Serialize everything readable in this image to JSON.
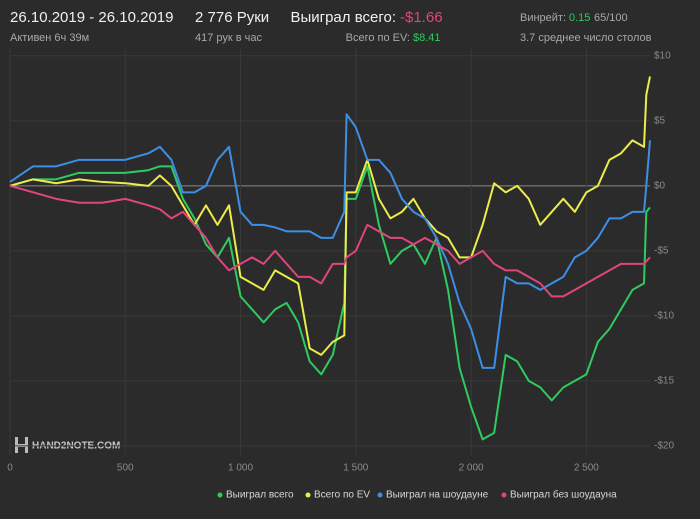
{
  "header": {
    "date": "26.10.2019 - 26.10.2019",
    "active": "Активен 6ч 39м",
    "hands": "2 776 Руки",
    "per_hour": "417 рук в час",
    "won_label": "Выиграл всего:",
    "won_value": "-$1.66",
    "ev_label": "Всего по EV:",
    "ev_value": "$8.41",
    "winrate_label": "Винрейт:",
    "winrate_value": "0.15",
    "winrate_unit": "65/100",
    "tables": "3.7 среднее число столов",
    "logo": "HAND2NOTE.COM"
  },
  "chart_data": {
    "type": "line",
    "x": [
      0,
      100,
      200,
      300,
      400,
      500,
      600,
      650,
      700,
      750,
      800,
      850,
      900,
      950,
      1000,
      1050,
      1100,
      1150,
      1200,
      1250,
      1300,
      1350,
      1400,
      1450,
      1460,
      1500,
      1550,
      1600,
      1650,
      1700,
      1750,
      1800,
      1850,
      1900,
      1950,
      2000,
      2050,
      2100,
      2150,
      2200,
      2250,
      2300,
      2350,
      2400,
      2450,
      2500,
      2550,
      2600,
      2650,
      2700,
      2750,
      2760,
      2776
    ],
    "series": [
      {
        "name": "Выиграл всего",
        "color": "#2ecc5f",
        "values": [
          0,
          0.5,
          0.5,
          1,
          1,
          1,
          1.2,
          1.5,
          1.5,
          -1,
          -2.5,
          -4.5,
          -5.5,
          -4,
          -8.5,
          -9.5,
          -10.5,
          -9.5,
          -9,
          -10.5,
          -13.5,
          -14.5,
          -13,
          -9,
          -1,
          -1,
          1.5,
          -3,
          -6,
          -5,
          -4.5,
          -6,
          -4,
          -8,
          -14,
          -17,
          -19.5,
          -19,
          -13,
          -13.5,
          -15,
          -15.5,
          -16.5,
          -15.5,
          -15,
          -14.5,
          -12,
          -11,
          -9.5,
          -8,
          -7.5,
          -2,
          -1.66
        ]
      },
      {
        "name": "Всего по EV",
        "color": "#ecec4a",
        "values": [
          0,
          0.5,
          0.2,
          0.5,
          0.3,
          0.2,
          0,
          0.8,
          0,
          -1.5,
          -3,
          -1.5,
          -3,
          -1.5,
          -7,
          -7.5,
          -8,
          -6.5,
          -7,
          -7.5,
          -12.5,
          -13,
          -12,
          -11.5,
          -0.5,
          -0.5,
          2,
          -1,
          -2.5,
          -2,
          -1,
          -2.5,
          -3.5,
          -4,
          -5.5,
          -5.5,
          -3,
          0.2,
          -0.5,
          0,
          -1,
          -3,
          -2,
          -1,
          -2,
          -0.5,
          0,
          2,
          2.5,
          3.5,
          3,
          7,
          8.41
        ]
      },
      {
        "name": "Выиграл на шоудауне",
        "color": "#3d8fe6",
        "values": [
          0.3,
          1.5,
          1.5,
          2,
          2,
          2,
          2.5,
          3,
          2,
          -0.5,
          -0.5,
          0,
          2,
          3,
          -2,
          -3,
          -3,
          -3.2,
          -3.5,
          -3.5,
          -3.5,
          -4,
          -4,
          -2,
          5.5,
          4.5,
          2,
          2,
          1,
          -1,
          -2,
          -2.5,
          -4,
          -6,
          -9,
          -11,
          -14,
          -14,
          -7,
          -7.5,
          -7.5,
          -8,
          -7.5,
          -7,
          -5.5,
          -5,
          -4,
          -2.5,
          -2.5,
          -2,
          -2,
          0,
          3.5
        ]
      },
      {
        "name": "Выиграл без шоудауна",
        "color": "#e0457d",
        "values": [
          0,
          -0.5,
          -1,
          -1.3,
          -1.3,
          -1,
          -1.5,
          -1.8,
          -2.5,
          -2,
          -3,
          -4,
          -5.5,
          -6.5,
          -6,
          -5.5,
          -6,
          -5,
          -6,
          -7,
          -7,
          -7.5,
          -6,
          -6,
          -5.5,
          -5,
          -3,
          -3.5,
          -4,
          -4,
          -4.5,
          -4,
          -4.5,
          -5,
          -6,
          -5.5,
          -5,
          -6,
          -6.5,
          -6.5,
          -7,
          -7.5,
          -8.5,
          -8.5,
          -8,
          -7.5,
          -7,
          -6.5,
          -6,
          -6,
          -6,
          -5.8,
          -5.5
        ]
      }
    ],
    "xlim": [
      0,
      2776
    ],
    "ylim": [
      -20.7,
      10.6
    ],
    "xticks": [
      0,
      500,
      {
        "value": 1000,
        "label": "1 000"
      },
      {
        "value": 1500,
        "label": "1 500"
      },
      {
        "value": 2000,
        "label": "2 000"
      },
      {
        "value": 2500,
        "label": "2 500"
      }
    ],
    "yticks": [
      {
        "value": 10,
        "label": "$10"
      },
      {
        "value": 5,
        "label": "$5"
      },
      {
        "value": 0,
        "label": "$0"
      },
      {
        "value": -5,
        "label": "-$5"
      },
      {
        "value": -10,
        "label": "-$10"
      },
      {
        "value": -15,
        "label": "-$15"
      },
      {
        "value": -20,
        "label": "-$20"
      }
    ],
    "grid": true
  }
}
